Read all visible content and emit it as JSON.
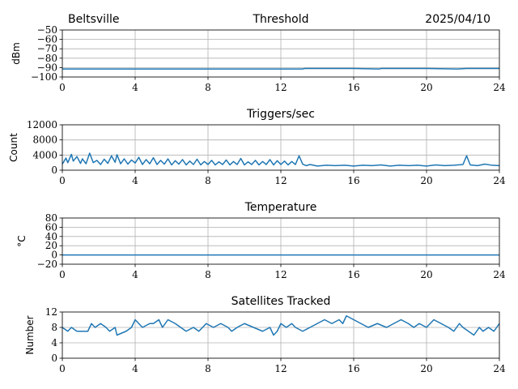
{
  "header": {
    "station": "Beltsville",
    "date": "2025/04/10"
  },
  "style": {
    "line_color": "#1f77b4",
    "grid_color": "#b0b0b0",
    "axis_color": "#000000"
  },
  "chart_data": [
    {
      "type": "line",
      "title": "Threshold",
      "xlabel": "",
      "ylabel": "dBm",
      "xlim": [
        0,
        24
      ],
      "ylim": [
        -100,
        -50
      ],
      "xticks": [
        0,
        4,
        8,
        12,
        16,
        20,
        24
      ],
      "xtick_labels": [
        "0",
        "4",
        "8",
        "12",
        "16",
        "20",
        "24"
      ],
      "yticks": [
        -100,
        -90,
        -80,
        -70,
        -60,
        -50
      ],
      "ytick_labels": [
        "−100",
        "−90",
        "−80",
        "−70",
        "−60",
        "−50"
      ],
      "grid": true,
      "series": [
        {
          "x": [
            0,
            2,
            4,
            6,
            8,
            10,
            12,
            13.2,
            13.3,
            16,
            17.4,
            17.5,
            20,
            21.7,
            22.2,
            24
          ],
          "y": [
            -91.5,
            -91.5,
            -91.5,
            -91.5,
            -91.5,
            -91.5,
            -91.5,
            -91.5,
            -91,
            -91,
            -91.5,
            -91,
            -91,
            -91.5,
            -91,
            -91
          ]
        }
      ]
    },
    {
      "type": "line",
      "title": "Triggers/sec",
      "xlabel": "",
      "ylabel": "Count",
      "xlim": [
        0,
        24
      ],
      "ylim": [
        0,
        12000
      ],
      "xticks": [
        0,
        4,
        8,
        12,
        16,
        20,
        24
      ],
      "xtick_labels": [
        "0",
        "4",
        "8",
        "12",
        "16",
        "20",
        "24"
      ],
      "yticks": [
        0,
        4000,
        8000,
        12000
      ],
      "ytick_labels": [
        "0",
        "4000",
        "8000",
        "12000"
      ],
      "grid": true,
      "series": [
        {
          "x": [
            0,
            0.2,
            0.3,
            0.5,
            0.6,
            0.8,
            1.0,
            1.1,
            1.3,
            1.5,
            1.7,
            1.9,
            2.1,
            2.3,
            2.5,
            2.7,
            2.9,
            3.0,
            3.2,
            3.4,
            3.6,
            3.8,
            4.0,
            4.2,
            4.4,
            4.6,
            4.8,
            5.0,
            5.2,
            5.4,
            5.6,
            5.8,
            6.0,
            6.2,
            6.4,
            6.6,
            6.8,
            7.0,
            7.2,
            7.4,
            7.6,
            7.8,
            8.0,
            8.2,
            8.4,
            8.6,
            8.8,
            9.0,
            9.2,
            9.4,
            9.6,
            9.8,
            10.0,
            10.2,
            10.4,
            10.6,
            10.8,
            11.0,
            11.2,
            11.4,
            11.6,
            11.8,
            12.0,
            12.2,
            12.4,
            12.6,
            12.8,
            13.0,
            13.2,
            13.4,
            13.6,
            14.0,
            14.5,
            15.0,
            15.5,
            16.0,
            16.5,
            17.0,
            17.5,
            18.0,
            18.5,
            19.0,
            19.5,
            20.0,
            20.5,
            21.0,
            21.5,
            22.0,
            22.2,
            22.4,
            22.8,
            23.2,
            23.6,
            24.0
          ],
          "y": [
            1600,
            3200,
            2000,
            4200,
            2400,
            3600,
            1800,
            3000,
            1700,
            4500,
            2000,
            2600,
            1500,
            2900,
            1800,
            3800,
            2100,
            4100,
            1700,
            3000,
            1600,
            2700,
            1900,
            3400,
            1500,
            2800,
            1700,
            3300,
            1500,
            2600,
            1600,
            3000,
            1400,
            2500,
            1600,
            2800,
            1400,
            2400,
            1500,
            2900,
            1400,
            2300,
            1500,
            2600,
            1400,
            2200,
            1500,
            2700,
            1400,
            2300,
            1500,
            3100,
            1400,
            2200,
            1500,
            2600,
            1400,
            2300,
            1500,
            2800,
            1400,
            2500,
            1500,
            2400,
            1400,
            2300,
            1500,
            3800,
            1600,
            1200,
            1500,
            1100,
            1300,
            1200,
            1300,
            1100,
            1300,
            1200,
            1400,
            1100,
            1300,
            1200,
            1300,
            1100,
            1400,
            1200,
            1300,
            1500,
            3800,
            1400,
            1200,
            1600,
            1300,
            1200
          ]
        }
      ]
    },
    {
      "type": "line",
      "title": "Temperature",
      "xlabel": "",
      "ylabel": "°C",
      "xlim": [
        0,
        24
      ],
      "ylim": [
        -20,
        80
      ],
      "xticks": [
        0,
        4,
        8,
        12,
        16,
        20,
        24
      ],
      "xtick_labels": [
        "0",
        "4",
        "8",
        "12",
        "16",
        "20",
        "24"
      ],
      "yticks": [
        -20,
        0,
        20,
        40,
        60,
        80
      ],
      "ytick_labels": [
        "−20",
        "0",
        "20",
        "40",
        "60",
        "80"
      ],
      "grid": true,
      "series": [
        {
          "x": [
            0,
            24
          ],
          "y": [
            0,
            0
          ]
        }
      ]
    },
    {
      "type": "line",
      "title": "Satellites Tracked",
      "xlabel": "",
      "ylabel": "Number",
      "xlim": [
        0,
        24
      ],
      "ylim": [
        0,
        12
      ],
      "xticks": [
        0,
        4,
        8,
        12,
        16,
        20,
        24
      ],
      "xtick_labels": [
        "0",
        "4",
        "8",
        "12",
        "16",
        "20",
        "24"
      ],
      "yticks": [
        0,
        4,
        8,
        12
      ],
      "ytick_labels": [
        "0",
        "4",
        "8",
        "12"
      ],
      "grid": true,
      "series": [
        {
          "x": [
            0,
            0.3,
            0.5,
            0.8,
            1.4,
            1.6,
            1.8,
            2.1,
            2.4,
            2.6,
            2.9,
            3.0,
            3.5,
            3.8,
            4.0,
            4.2,
            4.4,
            4.8,
            5.0,
            5.3,
            5.5,
            5.8,
            6.2,
            6.8,
            7.2,
            7.5,
            7.7,
            7.9,
            8.3,
            8.7,
            9.1,
            9.3,
            9.6,
            10.0,
            10.5,
            11.0,
            11.4,
            11.6,
            11.8,
            12.0,
            12.3,
            12.6,
            12.8,
            13.2,
            13.6,
            14.0,
            14.4,
            14.8,
            15.2,
            15.4,
            15.6,
            16.0,
            16.4,
            16.8,
            17.3,
            17.8,
            18.2,
            18.6,
            19.0,
            19.3,
            19.6,
            20.0,
            20.4,
            20.8,
            21.2,
            21.5,
            21.8,
            22.0,
            22.3,
            22.6,
            22.9,
            23.1,
            23.4,
            23.7,
            24.0
          ],
          "y": [
            8,
            7,
            8,
            7,
            7,
            9,
            8,
            9,
            8,
            7,
            8,
            6,
            7,
            8,
            10,
            9,
            8,
            9,
            9,
            10,
            8,
            10,
            9,
            7,
            8,
            7,
            8,
            9,
            8,
            9,
            8,
            7,
            8,
            9,
            8,
            7,
            8,
            6,
            7,
            9,
            8,
            9,
            8,
            7,
            8,
            9,
            10,
            9,
            10,
            9,
            11,
            10,
            9,
            8,
            9,
            8,
            9,
            10,
            9,
            8,
            9,
            8,
            10,
            9,
            8,
            7,
            9,
            8,
            7,
            6,
            8,
            7,
            8,
            7,
            9
          ]
        }
      ]
    }
  ]
}
